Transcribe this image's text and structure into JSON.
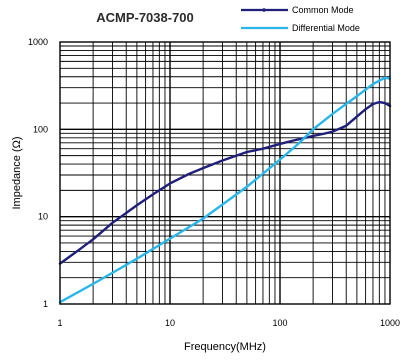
{
  "chart_data": {
    "type": "line",
    "title": "ACMP-7038-700",
    "xlabel": "Frequency(MHz)",
    "ylabel": "Impedance (Ω)",
    "x_scale": "log",
    "y_scale": "log",
    "xlim": [
      1,
      1000
    ],
    "ylim": [
      1,
      1000
    ],
    "x_ticks": [
      "1",
      "10",
      "100",
      "1000"
    ],
    "y_ticks": [
      "1",
      "10",
      "100",
      "1000"
    ],
    "grid": true,
    "legend_position": "top-right",
    "series": [
      {
        "name": "Common Mode",
        "color": "#1f1f7a",
        "x": [
          1,
          1.5,
          2,
          3,
          5,
          7,
          10,
          15,
          20,
          30,
          50,
          70,
          100,
          130,
          170,
          200,
          250,
          300,
          400,
          500,
          600,
          700,
          800,
          900,
          1000
        ],
        "y": [
          2.9,
          4.2,
          5.5,
          8.5,
          13.5,
          18,
          24,
          31,
          36,
          44,
          55,
          60,
          68,
          74,
          80,
          84,
          89,
          94,
          110,
          140,
          170,
          195,
          205,
          200,
          185
        ]
      },
      {
        "name": "Differential Mode",
        "color": "#29b6e8",
        "x": [
          1,
          2,
          5,
          10,
          20,
          50,
          100,
          150,
          200,
          300,
          500,
          700,
          900,
          1000
        ],
        "y": [
          1.05,
          1.7,
          3.3,
          5.6,
          9.5,
          22,
          45,
          70,
          100,
          150,
          240,
          330,
          390,
          380
        ]
      }
    ]
  }
}
